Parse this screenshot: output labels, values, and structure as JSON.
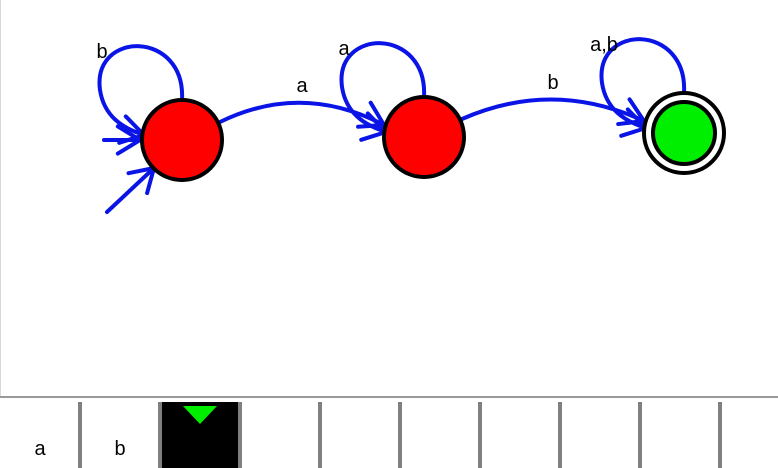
{
  "automaton": {
    "states": [
      {
        "id": "q0",
        "initial": true,
        "accepting": false,
        "status": "inactive"
      },
      {
        "id": "q1",
        "initial": false,
        "accepting": false,
        "status": "inactive"
      },
      {
        "id": "q2",
        "initial": false,
        "accepting": true,
        "status": "active"
      }
    ],
    "transitions": [
      {
        "from": "q0",
        "to": "q0",
        "label": "b"
      },
      {
        "from": "q0",
        "to": "q1",
        "label": "a"
      },
      {
        "from": "q1",
        "to": "q1",
        "label": "a"
      },
      {
        "from": "q1",
        "to": "q2",
        "label": "b"
      },
      {
        "from": "q2",
        "to": "q2",
        "label": "a,b"
      }
    ]
  },
  "tape": {
    "cells": [
      "a",
      "b",
      "",
      "",
      "",
      "",
      "",
      "",
      "",
      ""
    ],
    "head_index": 2
  },
  "colors": {
    "edge": "#0a14e6",
    "state_fill": "#ff0000",
    "active_fill": "#00ee00",
    "head_marker": "#00ee00",
    "outline": "#000000"
  }
}
